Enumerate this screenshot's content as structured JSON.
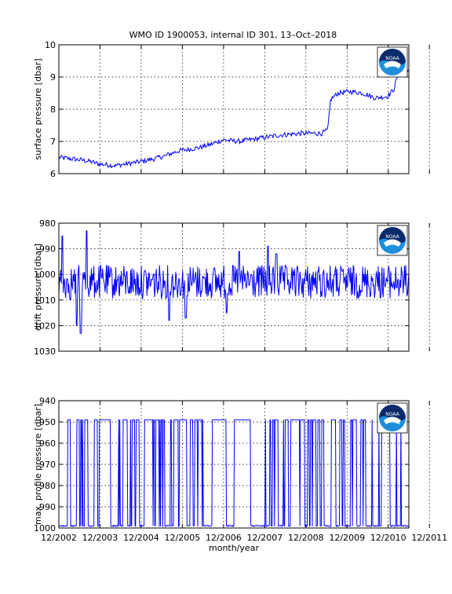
{
  "title": "WMO ID 1900053, internal ID 301, 13–Oct–2018",
  "logo_text": "NOAA",
  "colors": {
    "line": "#0000ff",
    "frame": "#000000",
    "logo_blue": "#1f8fdc",
    "logo_navy": "#0b2a6b"
  },
  "chart_data": [
    {
      "type": "line",
      "name": "surface",
      "ylabel": "surface pressure [dbar]",
      "ylim": [
        6,
        10
      ],
      "y_ticks": [
        "6",
        "7",
        "8",
        "9",
        "10"
      ],
      "y_reversed": false,
      "grid": true,
      "x_labels_shown": false,
      "keypoints": [
        [
          2002.92,
          6.5
        ],
        [
          2003.3,
          6.45
        ],
        [
          2003.6,
          6.4
        ],
        [
          2003.9,
          6.3
        ],
        [
          2004.3,
          6.25
        ],
        [
          2004.8,
          6.35
        ],
        [
          2005.2,
          6.45
        ],
        [
          2005.5,
          6.55
        ],
        [
          2005.8,
          6.7
        ],
        [
          2006.3,
          6.8
        ],
        [
          2006.6,
          6.9
        ],
        [
          2006.9,
          7.05
        ],
        [
          2007.3,
          7.0
        ],
        [
          2007.8,
          7.1
        ],
        [
          2008.3,
          7.2
        ],
        [
          2008.8,
          7.25
        ],
        [
          2009.3,
          7.25
        ],
        [
          2009.45,
          7.35
        ],
        [
          2009.52,
          8.3
        ],
        [
          2009.7,
          8.5
        ],
        [
          2010.0,
          8.55
        ],
        [
          2010.3,
          8.5
        ],
        [
          2010.6,
          8.35
        ],
        [
          2010.9,
          8.4
        ],
        [
          2011.05,
          8.6
        ],
        [
          2011.15,
          9.05
        ],
        [
          2011.3,
          9.1
        ],
        [
          2011.4,
          9.15
        ]
      ],
      "noise": 0.08
    },
    {
      "type": "line",
      "name": "drift",
      "ylabel": "drift pressure [dbar]",
      "ylim": [
        980,
        1030
      ],
      "y_ticks": [
        "980",
        "990",
        "1000",
        "1010",
        "1020",
        "1030"
      ],
      "y_reversed": true,
      "grid": true,
      "x_labels_shown": false,
      "base": 1003,
      "noise": 6,
      "spikes": [
        [
          2003.0,
          985
        ],
        [
          2003.2,
          1010
        ],
        [
          2003.35,
          1020
        ],
        [
          2003.45,
          1023
        ],
        [
          2003.6,
          983
        ],
        [
          2005.6,
          1018
        ],
        [
          2006.0,
          1017
        ],
        [
          2007.0,
          1015
        ],
        [
          2007.3,
          991
        ],
        [
          2008.0,
          989
        ],
        [
          2008.2,
          992
        ]
      ]
    },
    {
      "type": "line",
      "name": "profile",
      "ylabel": "max. profile pressure [dbar]",
      "xlabel": "month/year",
      "ylim": [
        940,
        1000
      ],
      "y_ticks": [
        "940",
        "950",
        "960",
        "970",
        "980",
        "990",
        "1000"
      ],
      "y_reversed": true,
      "grid": true,
      "x_labels_shown": true,
      "x_tick_labels": [
        "12/2002",
        "12/2003",
        "12/2004",
        "12/2005",
        "12/2006",
        "12/2007",
        "12/2008",
        "12/2009",
        "12/2010",
        "12/2011"
      ],
      "low_value": 999,
      "high_value": 949
    }
  ],
  "x_range": [
    2002.92,
    2011.42
  ]
}
